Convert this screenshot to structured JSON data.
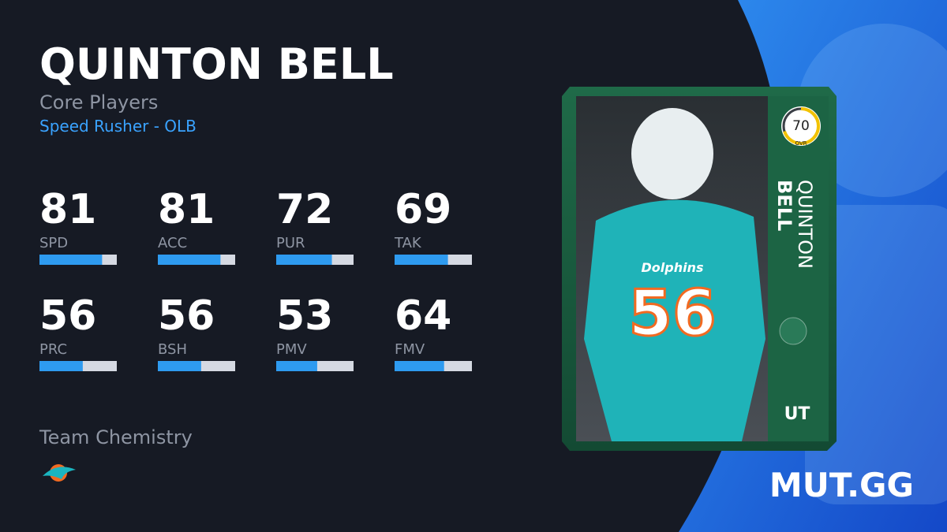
{
  "header": {
    "name": "QUINTON BELL",
    "program": "Core Players",
    "archetype": "Speed Rusher - OLB"
  },
  "stats": [
    {
      "value": 81,
      "label": "SPD"
    },
    {
      "value": 81,
      "label": "ACC"
    },
    {
      "value": 72,
      "label": "PUR"
    },
    {
      "value": 69,
      "label": "TAK"
    },
    {
      "value": 56,
      "label": "PRC"
    },
    {
      "value": 56,
      "label": "BSH"
    },
    {
      "value": 53,
      "label": "PMV"
    },
    {
      "value": 64,
      "label": "FMV"
    }
  ],
  "team_chemistry": "Team Chemistry",
  "card": {
    "ovr": 70,
    "ovr_label": "OVR",
    "first_name": "QUINTON",
    "last_name": "BELL",
    "tag": "UT",
    "jersey_number": "56",
    "jersey_text": "Dolphins"
  },
  "brand": "MUT.GG"
}
